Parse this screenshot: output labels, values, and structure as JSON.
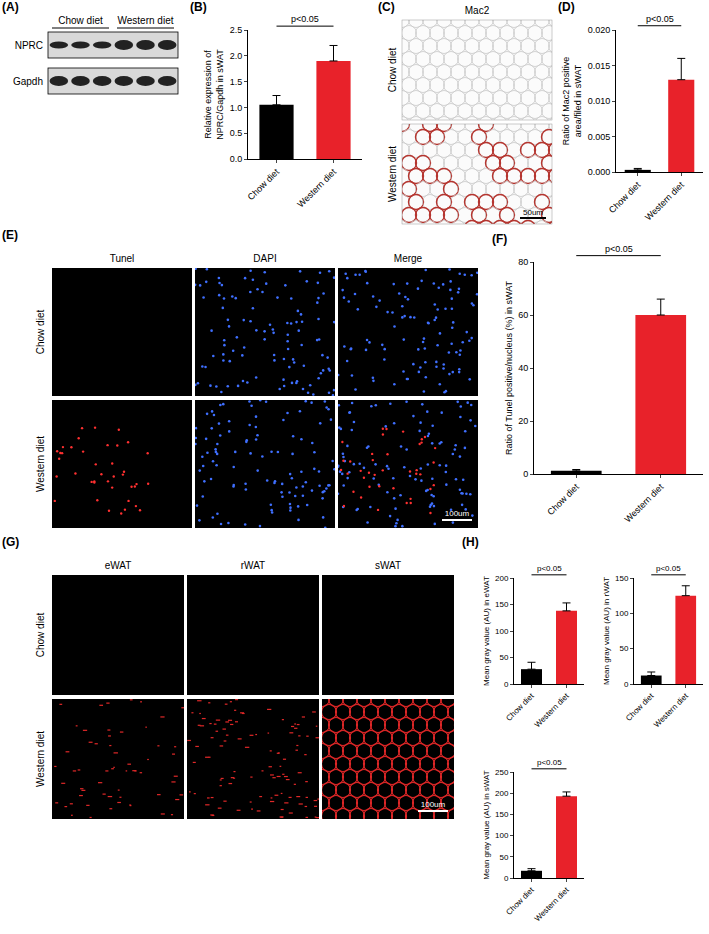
{
  "figure": {
    "A": {
      "label": "(A)",
      "lanes": [
        "Chow diet",
        "Western diet"
      ],
      "bands": [
        "NPRC",
        "Gapdh"
      ]
    },
    "C": {
      "label": "(C)",
      "stain": "Mac2",
      "rows": [
        "Chow diet",
        "Western diet"
      ],
      "scale_bar": "50um"
    },
    "E": {
      "label": "(E)",
      "columns": [
        "Tunel",
        "DAPI",
        "Merge"
      ],
      "rows": [
        "Chow diet",
        "Western diet"
      ],
      "scale_bar": "100um"
    },
    "G": {
      "label": "(G)",
      "columns": [
        "eWAT",
        "rWAT",
        "sWAT"
      ],
      "rows": [
        "Chow diet",
        "Western diet"
      ],
      "scale_bar": "100um"
    },
    "H": {
      "label": "(H)"
    }
  },
  "chart_data": [
    {
      "label": "(B)",
      "type": "bar",
      "y_label": [
        "Relative expression of",
        "NPRC/Gapdh in sWAT"
      ],
      "categories": [
        "Chow diet",
        "Western diet"
      ],
      "values": [
        1.05,
        1.9
      ],
      "errors": [
        0.18,
        0.3
      ],
      "colors": [
        "#000000",
        "#e8222a"
      ],
      "ylim": [
        0,
        2.5
      ],
      "yticks": [
        {
          "value": 0,
          "label": "0.0"
        },
        {
          "value": 0.5,
          "label": "0.5"
        },
        {
          "value": 1,
          "label": "1.0"
        },
        {
          "value": 1.5,
          "label": "1.5"
        },
        {
          "value": 2,
          "label": "2.0"
        },
        {
          "value": 2.5,
          "label": "2.5"
        }
      ],
      "grid": false,
      "annotations": [
        "p<0.05"
      ]
    },
    {
      "label": "(D)",
      "type": "bar",
      "y_label": [
        "Ratio of Mac2 positive",
        "area/filed in sWAT"
      ],
      "categories": [
        "Chow diet",
        "Western diet"
      ],
      "values": [
        0.0003,
        0.013
      ],
      "errors": [
        0.0002,
        0.003
      ],
      "colors": [
        "#000000",
        "#e8222a"
      ],
      "ylim": [
        0,
        0.02
      ],
      "yticks": [
        {
          "value": 0,
          "label": "0.000"
        },
        {
          "value": 0.005,
          "label": "0.005"
        },
        {
          "value": 0.01,
          "label": "0.010"
        },
        {
          "value": 0.015,
          "label": "0.015"
        },
        {
          "value": 0.02,
          "label": "0.020"
        }
      ],
      "grid": false,
      "annotations": [
        "p<0.05"
      ]
    },
    {
      "label": "(F)",
      "type": "bar",
      "y_label": [
        "Ratio of Tunel positive/nucleus (%) in sWAT"
      ],
      "categories": [
        "Chow diet",
        "Western diet"
      ],
      "values": [
        1.2,
        60
      ],
      "errors": [
        0.5,
        6
      ],
      "colors": [
        "#000000",
        "#e8222a"
      ],
      "ylim": [
        0,
        80
      ],
      "yticks": [
        0,
        20,
        40,
        60,
        80
      ],
      "grid": false,
      "annotations": [
        "p<0.05"
      ]
    },
    {
      "label": "",
      "type": "bar",
      "y_label": [
        "Mean gray value (AU) in eWAT"
      ],
      "categories": [
        "Chow diet",
        "Western diet"
      ],
      "values": [
        28,
        138
      ],
      "errors": [
        13,
        15
      ],
      "colors": [
        "#000000",
        "#e8222a"
      ],
      "ylim": [
        0,
        200
      ],
      "yticks": [
        0,
        50,
        100,
        150,
        200
      ],
      "grid": false,
      "annotations": [
        "p<0.05"
      ]
    },
    {
      "label": "",
      "type": "bar",
      "y_label": [
        "Mean gray value (AU) in rWAT"
      ],
      "categories": [
        "Chow diet",
        "Western diet"
      ],
      "values": [
        12,
        125
      ],
      "errors": [
        5,
        14
      ],
      "colors": [
        "#000000",
        "#e8222a"
      ],
      "ylim": [
        0,
        150
      ],
      "yticks": [
        0,
        50,
        100,
        150
      ],
      "grid": false,
      "annotations": [
        "p<0.05"
      ]
    },
    {
      "label": "",
      "type": "bar",
      "y_label": [
        "Mean gray value (AU) in sWAT"
      ],
      "categories": [
        "Chow diet",
        "Western diet"
      ],
      "values": [
        17,
        193
      ],
      "errors": [
        5,
        10
      ],
      "colors": [
        "#000000",
        "#e8222a"
      ],
      "ylim": [
        0,
        250
      ],
      "yticks": [
        0,
        50,
        100,
        150,
        200,
        250
      ],
      "grid": false,
      "annotations": [
        "p<0.05"
      ]
    }
  ]
}
